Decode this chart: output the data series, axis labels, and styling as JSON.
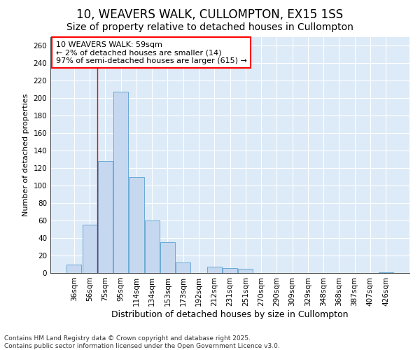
{
  "title1": "10, WEAVERS WALK, CULLOMPTON, EX15 1SS",
  "title2": "Size of property relative to detached houses in Cullompton",
  "xlabel": "Distribution of detached houses by size in Cullompton",
  "ylabel": "Number of detached properties",
  "categories": [
    "36sqm",
    "56sqm",
    "75sqm",
    "95sqm",
    "114sqm",
    "134sqm",
    "153sqm",
    "173sqm",
    "192sqm",
    "212sqm",
    "231sqm",
    "251sqm",
    "270sqm",
    "290sqm",
    "309sqm",
    "329sqm",
    "348sqm",
    "368sqm",
    "387sqm",
    "407sqm",
    "426sqm"
  ],
  "values": [
    10,
    55,
    128,
    207,
    110,
    60,
    35,
    12,
    0,
    7,
    6,
    5,
    0,
    0,
    0,
    0,
    0,
    0,
    0,
    0,
    1
  ],
  "bar_color": "#c5d8f0",
  "bar_edge_color": "#6aaad4",
  "bg_color": "#ddeaf7",
  "grid_color": "#ffffff",
  "vline_x": 1.5,
  "annotation_line1": "10 WEAVERS WALK: 59sqm",
  "annotation_line2": "← 2% of detached houses are smaller (14)",
  "annotation_line3": "97% of semi-detached houses are larger (615) →",
  "footer_line1": "Contains HM Land Registry data © Crown copyright and database right 2025.",
  "footer_line2": "Contains public sector information licensed under the Open Government Licence v3.0.",
  "ylim": [
    0,
    270
  ],
  "yticks": [
    0,
    20,
    40,
    60,
    80,
    100,
    120,
    140,
    160,
    180,
    200,
    220,
    240,
    260
  ],
  "title1_fontsize": 12,
  "title2_fontsize": 10,
  "ylabel_fontsize": 8,
  "xlabel_fontsize": 9,
  "tick_fontsize": 7.5,
  "annotation_fontsize": 8,
  "footer_fontsize": 6.5,
  "fig_bg": "#ffffff"
}
